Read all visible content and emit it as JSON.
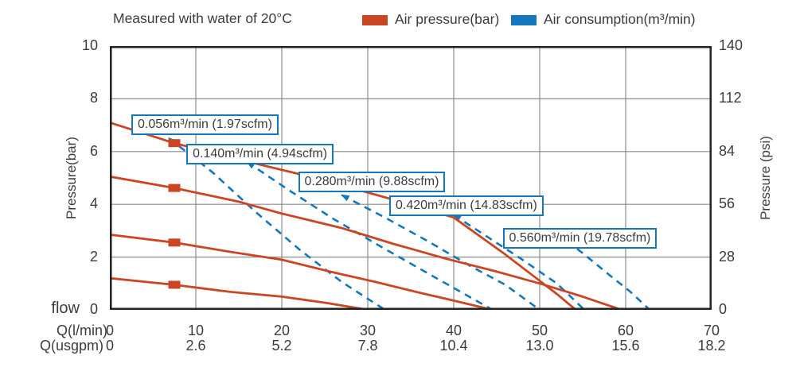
{
  "header": {
    "title": "Measured with water of 20°C",
    "legend": [
      {
        "label": "Air pressure(bar)",
        "color": "#cb4522",
        "style": "solid"
      },
      {
        "label": "Air consumption(m³/min)",
        "color": "#1477bd",
        "style": "dashed"
      }
    ]
  },
  "colors": {
    "air_pressure": "#cb4522",
    "air_consumption": "#1477bd",
    "grid": "#8c8c8c",
    "frame": "#222222",
    "text": "#3c3c3c"
  },
  "chart_data": {
    "type": "line",
    "title": "Measured with water of 20°C",
    "x": {
      "row_lmin_label": "Q(l/min)",
      "row_usgpm_label": "Q(usgpm)",
      "flow_label": "flow",
      "range_lmin": [
        0,
        70
      ],
      "ticks_lmin": [
        "0",
        "10",
        "20",
        "30",
        "40",
        "50",
        "60",
        "70"
      ],
      "ticks_usgpm": [
        "0",
        "2.6",
        "5.2",
        "7.8",
        "10.4",
        "13.0",
        "15.6",
        "18.2"
      ]
    },
    "y_left": {
      "label": "Pressure(bar)",
      "range": [
        0,
        10
      ],
      "ticks": [
        "10",
        "8",
        "6",
        "4",
        "2",
        "0"
      ]
    },
    "y_right": {
      "label": "Pressure (psi)",
      "range": [
        0,
        140
      ],
      "ticks": [
        "140",
        "112",
        "84",
        "56",
        "28",
        "0"
      ]
    },
    "grid": {
      "x_lines": [
        10,
        20,
        30,
        40,
        50,
        60
      ],
      "y_lines": [
        2,
        4,
        6,
        8
      ]
    },
    "air_pressure_curves": [
      {
        "name": "air-pressure-curve-1",
        "points": [
          [
            0,
            7.1
          ],
          [
            7.5,
            6.32
          ],
          [
            15,
            5.7
          ],
          [
            22,
            5.15
          ],
          [
            30,
            4.45
          ],
          [
            36,
            3.9
          ],
          [
            40,
            3.5
          ],
          [
            43,
            2.8
          ],
          [
            46,
            2.1
          ],
          [
            49,
            1.35
          ],
          [
            52,
            0.6
          ],
          [
            54.2,
            0
          ]
        ],
        "marker_at": [
          7.5,
          6.32
        ]
      },
      {
        "name": "air-pressure-curve-2",
        "points": [
          [
            0,
            5.05
          ],
          [
            7.5,
            4.62
          ],
          [
            15,
            4.1
          ],
          [
            20,
            3.65
          ],
          [
            27,
            3.1
          ],
          [
            33,
            2.5
          ],
          [
            39,
            1.95
          ],
          [
            45,
            1.45
          ],
          [
            50,
            1.0
          ],
          [
            55,
            0.5
          ],
          [
            59.5,
            0
          ]
        ],
        "marker_at": [
          7.5,
          4.62
        ]
      },
      {
        "name": "air-pressure-curve-3",
        "points": [
          [
            0,
            2.85
          ],
          [
            7.5,
            2.55
          ],
          [
            14,
            2.2
          ],
          [
            20,
            1.9
          ],
          [
            26,
            1.42
          ],
          [
            31,
            1.05
          ],
          [
            36,
            0.65
          ],
          [
            40,
            0.35
          ],
          [
            44.5,
            0
          ]
        ],
        "marker_at": [
          7.5,
          2.55
        ]
      },
      {
        "name": "air-pressure-curve-4",
        "points": [
          [
            0,
            1.2
          ],
          [
            7.5,
            0.95
          ],
          [
            14,
            0.68
          ],
          [
            20,
            0.5
          ],
          [
            25,
            0.27
          ],
          [
            30,
            0
          ]
        ],
        "marker_at": [
          7.5,
          0.95
        ]
      }
    ],
    "air_consumption_curves": [
      {
        "label": "0.056m³/min (1.97scfm)",
        "points": [
          [
            6.9,
            6.5
          ],
          [
            12,
            5.2
          ],
          [
            17,
            3.7
          ],
          [
            22,
            2.3
          ],
          [
            27,
            1.05
          ],
          [
            32,
            0
          ]
        ]
      },
      {
        "label": "0.140m³/min (4.94scfm)",
        "points": [
          [
            16,
            5.6
          ],
          [
            21,
            4.5
          ],
          [
            26,
            3.45
          ],
          [
            31.5,
            2.4
          ],
          [
            38,
            1.2
          ],
          [
            44.5,
            0
          ]
        ]
      },
      {
        "label": "0.280m³/min (9.88scfm)",
        "points": [
          [
            27,
            4.35
          ],
          [
            32,
            3.5
          ],
          [
            37,
            2.6
          ],
          [
            42,
            1.65
          ],
          [
            46,
            0.95
          ],
          [
            50,
            0
          ]
        ]
      },
      {
        "label": "0.420m³/min (14.83scfm)",
        "points": [
          [
            40,
            3.6
          ],
          [
            44,
            2.75
          ],
          [
            48,
            1.9
          ],
          [
            52,
            1.0
          ],
          [
            55.2,
            0
          ]
        ]
      },
      {
        "label": "0.560m³/min (19.78scfm)",
        "points": [
          [
            52,
            2.9
          ],
          [
            55,
            2.15
          ],
          [
            58,
            1.35
          ],
          [
            60.5,
            0.7
          ],
          [
            62.8,
            0
          ]
        ]
      }
    ],
    "annotations": [
      {
        "text": "0.056m³/min (1.97scfm)",
        "anchor_q": 2.5,
        "anchor_bar": 7.42
      },
      {
        "text": "0.140m³/min (4.94scfm)",
        "anchor_q": 8.9,
        "anchor_bar": 6.3
      },
      {
        "text": "0.280m³/min (9.88scfm)",
        "anchor_q": 21.9,
        "anchor_bar": 5.25
      },
      {
        "text": "0.420m³/min (14.83scfm)",
        "anchor_q": 32.5,
        "anchor_bar": 4.35
      },
      {
        "text": "0.560m³/min (19.78scfm)",
        "anchor_q": 45.7,
        "anchor_bar": 3.1
      }
    ]
  }
}
